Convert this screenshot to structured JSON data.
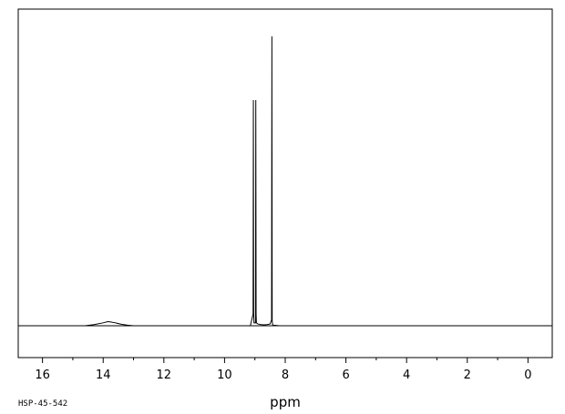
{
  "chart_data": {
    "type": "line",
    "xlabel": "ppm",
    "ylabel": "",
    "x_reversed": true,
    "xlim": [
      16.8,
      -0.8
    ],
    "ylim": [
      -0.12,
      1.0
    ],
    "x_ticks": [
      16,
      14,
      12,
      10,
      8,
      6,
      4,
      2,
      0
    ],
    "x_tick_labels": [
      "16",
      "14",
      "12",
      "10",
      "8",
      "6",
      "4",
      "2",
      "0"
    ],
    "grid": false,
    "series": [
      {
        "x": [
          16.8,
          14.6,
          14.3,
          14.0,
          13.85,
          13.75,
          13.6,
          13.4,
          13.2,
          13.0,
          9.15,
          9.06,
          9.05,
          9.04,
          9.03,
          8.98,
          8.97,
          8.96,
          8.95,
          8.9,
          8.8,
          8.7,
          8.6,
          8.5,
          8.45,
          8.44,
          8.43,
          8.42,
          8.4,
          8.3,
          8.2,
          -0.8
        ],
        "y": [
          0.0,
          0.0,
          0.004,
          0.01,
          0.014,
          0.013,
          0.01,
          0.005,
          0.002,
          0.0,
          0.0,
          0.04,
          0.78,
          0.04,
          0.01,
          0.01,
          0.78,
          0.04,
          0.01,
          0.006,
          0.004,
          0.003,
          0.004,
          0.006,
          0.02,
          1.0,
          0.02,
          0.005,
          0.002,
          0.001,
          0.0,
          0.0
        ]
      }
    ]
  },
  "footer": {
    "spectrum_id": "HSP-45-542"
  }
}
